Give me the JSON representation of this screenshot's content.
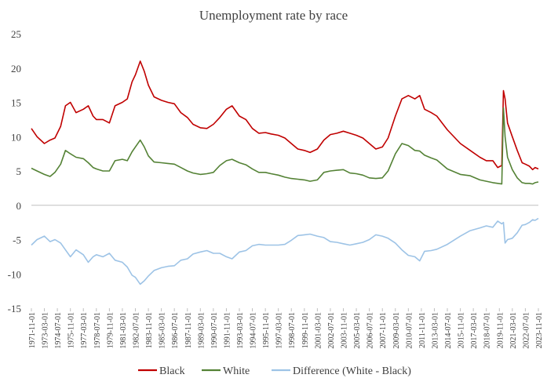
{
  "chart_data": {
    "type": "line",
    "title": "Unemployment rate by race",
    "xlabel": "",
    "ylabel": "",
    "ylim": [
      -15,
      25
    ],
    "yticks": [
      25,
      20,
      15,
      10,
      5,
      0,
      -5,
      -10,
      -15
    ],
    "xlim": [
      "1971-11-01",
      "2023-11-01"
    ],
    "xticks": [
      "1971-11-01",
      "1973-03-01",
      "1974-07-01",
      "1975-11-01",
      "1977-03-01",
      "1978-07-01",
      "1979-11-01",
      "1981-03-01",
      "1982-07-01",
      "1983-11-01",
      "1985-03-01",
      "1986-07-01",
      "1987-11-01",
      "1989-03-01",
      "1990-07-01",
      "1991-11-01",
      "1993-03-01",
      "1994-07-01",
      "1995-11-01",
      "1997-03-01",
      "1998-07-01",
      "1999-11-01",
      "2001-03-01",
      "2002-07-01",
      "2003-11-01",
      "2005-03-01",
      "2006-07-01",
      "2007-11-01",
      "2009-03-01",
      "2010-07-01",
      "2011-11-01",
      "2013-03-01",
      "2014-07-01",
      "2015-11-01",
      "2017-03-01",
      "2018-07-01",
      "2019-11-01",
      "2021-03-01",
      "2022-07-01",
      "2023-11-01"
    ],
    "grid": false,
    "legend_position": "bottom",
    "series": [
      {
        "name": "Black",
        "color": "#c00000",
        "points": [
          [
            "1971-11-01",
            11.2
          ],
          [
            "1972-06-01",
            10.0
          ],
          [
            "1973-03-01",
            9.0
          ],
          [
            "1973-10-01",
            9.5
          ],
          [
            "1974-04-01",
            9.8
          ],
          [
            "1974-11-01",
            11.5
          ],
          [
            "1975-05-01",
            14.5
          ],
          [
            "1975-11-01",
            15.0
          ],
          [
            "1976-06-01",
            13.5
          ],
          [
            "1977-03-01",
            14.0
          ],
          [
            "1977-09-01",
            14.5
          ],
          [
            "1978-03-01",
            13.0
          ],
          [
            "1978-07-01",
            12.5
          ],
          [
            "1979-03-01",
            12.5
          ],
          [
            "1979-11-01",
            12.0
          ],
          [
            "1980-06-01",
            14.5
          ],
          [
            "1981-03-01",
            15.0
          ],
          [
            "1981-09-01",
            15.5
          ],
          [
            "1982-03-01",
            18.0
          ],
          [
            "1982-07-01",
            19.0
          ],
          [
            "1983-01-01",
            21.0
          ],
          [
            "1983-06-01",
            19.5
          ],
          [
            "1983-11-01",
            17.5
          ],
          [
            "1984-06-01",
            15.8
          ],
          [
            "1985-03-01",
            15.3
          ],
          [
            "1985-11-01",
            15.0
          ],
          [
            "1986-07-01",
            14.8
          ],
          [
            "1987-03-01",
            13.5
          ],
          [
            "1987-11-01",
            12.8
          ],
          [
            "1988-06-01",
            11.8
          ],
          [
            "1989-03-01",
            11.3
          ],
          [
            "1989-11-01",
            11.2
          ],
          [
            "1990-07-01",
            11.8
          ],
          [
            "1991-03-01",
            12.8
          ],
          [
            "1991-11-01",
            14.0
          ],
          [
            "1992-06-01",
            14.5
          ],
          [
            "1993-03-01",
            13.0
          ],
          [
            "1993-11-01",
            12.5
          ],
          [
            "1994-07-01",
            11.2
          ],
          [
            "1995-03-01",
            10.5
          ],
          [
            "1995-11-01",
            10.6
          ],
          [
            "1996-06-01",
            10.4
          ],
          [
            "1997-03-01",
            10.2
          ],
          [
            "1997-11-01",
            9.8
          ],
          [
            "1998-07-01",
            9.0
          ],
          [
            "1999-03-01",
            8.2
          ],
          [
            "1999-11-01",
            8.0
          ],
          [
            "2000-06-01",
            7.7
          ],
          [
            "2001-03-01",
            8.2
          ],
          [
            "2001-11-01",
            9.5
          ],
          [
            "2002-07-01",
            10.3
          ],
          [
            "2003-03-01",
            10.5
          ],
          [
            "2003-11-01",
            10.8
          ],
          [
            "2004-07-01",
            10.5
          ],
          [
            "2005-03-01",
            10.2
          ],
          [
            "2005-11-01",
            9.8
          ],
          [
            "2006-07-01",
            9.0
          ],
          [
            "2007-03-01",
            8.2
          ],
          [
            "2007-11-01",
            8.5
          ],
          [
            "2008-06-01",
            9.8
          ],
          [
            "2009-03-01",
            13.0
          ],
          [
            "2009-11-01",
            15.5
          ],
          [
            "2010-07-01",
            16.0
          ],
          [
            "2011-03-01",
            15.5
          ],
          [
            "2011-09-01",
            16.0
          ],
          [
            "2012-03-01",
            14.0
          ],
          [
            "2012-11-01",
            13.5
          ],
          [
            "2013-06-01",
            13.0
          ],
          [
            "2014-07-01",
            11.0
          ],
          [
            "2015-11-01",
            9.0
          ],
          [
            "2016-11-01",
            8.0
          ],
          [
            "2017-11-01",
            7.0
          ],
          [
            "2018-07-01",
            6.5
          ],
          [
            "2019-03-01",
            6.5
          ],
          [
            "2019-09-01",
            5.5
          ],
          [
            "2020-02-01",
            5.8
          ],
          [
            "2020-04-01",
            16.7
          ],
          [
            "2020-06-01",
            15.5
          ],
          [
            "2020-09-01",
            12.0
          ],
          [
            "2021-03-01",
            10.0
          ],
          [
            "2021-09-01",
            8.0
          ],
          [
            "2022-03-01",
            6.2
          ],
          [
            "2022-07-01",
            6.0
          ],
          [
            "2022-12-01",
            5.7
          ],
          [
            "2023-04-01",
            5.2
          ],
          [
            "2023-07-01",
            5.5
          ],
          [
            "2023-11-01",
            5.3
          ]
        ]
      },
      {
        "name": "White",
        "color": "#548235",
        "points": [
          [
            "1971-11-01",
            5.4
          ],
          [
            "1972-06-01",
            5.0
          ],
          [
            "1973-03-01",
            4.5
          ],
          [
            "1973-10-01",
            4.2
          ],
          [
            "1974-04-01",
            4.8
          ],
          [
            "1974-11-01",
            6.0
          ],
          [
            "1975-05-01",
            8.0
          ],
          [
            "1975-11-01",
            7.5
          ],
          [
            "1976-06-01",
            7.0
          ],
          [
            "1977-03-01",
            6.8
          ],
          [
            "1977-09-01",
            6.2
          ],
          [
            "1978-03-01",
            5.5
          ],
          [
            "1978-07-01",
            5.3
          ],
          [
            "1979-03-01",
            5.0
          ],
          [
            "1979-11-01",
            5.0
          ],
          [
            "1980-06-01",
            6.5
          ],
          [
            "1981-03-01",
            6.7
          ],
          [
            "1981-09-01",
            6.5
          ],
          [
            "1982-03-01",
            7.8
          ],
          [
            "1982-07-01",
            8.5
          ],
          [
            "1983-01-01",
            9.5
          ],
          [
            "1983-06-01",
            8.5
          ],
          [
            "1983-11-01",
            7.2
          ],
          [
            "1984-06-01",
            6.3
          ],
          [
            "1985-03-01",
            6.2
          ],
          [
            "1985-11-01",
            6.1
          ],
          [
            "1986-07-01",
            6.0
          ],
          [
            "1987-03-01",
            5.5
          ],
          [
            "1987-11-01",
            5.0
          ],
          [
            "1988-06-01",
            4.7
          ],
          [
            "1989-03-01",
            4.5
          ],
          [
            "1989-11-01",
            4.6
          ],
          [
            "1990-07-01",
            4.8
          ],
          [
            "1991-03-01",
            5.8
          ],
          [
            "1991-11-01",
            6.5
          ],
          [
            "1992-06-01",
            6.7
          ],
          [
            "1993-03-01",
            6.2
          ],
          [
            "1993-11-01",
            5.9
          ],
          [
            "1994-07-01",
            5.3
          ],
          [
            "1995-03-01",
            4.8
          ],
          [
            "1995-11-01",
            4.8
          ],
          [
            "1996-06-01",
            4.6
          ],
          [
            "1997-03-01",
            4.4
          ],
          [
            "1997-11-01",
            4.1
          ],
          [
            "1998-07-01",
            3.9
          ],
          [
            "1999-03-01",
            3.8
          ],
          [
            "1999-11-01",
            3.7
          ],
          [
            "2000-06-01",
            3.5
          ],
          [
            "2001-03-01",
            3.7
          ],
          [
            "2001-11-01",
            4.8
          ],
          [
            "2002-07-01",
            5.0
          ],
          [
            "2003-03-01",
            5.1
          ],
          [
            "2003-11-01",
            5.2
          ],
          [
            "2004-07-01",
            4.7
          ],
          [
            "2005-03-01",
            4.6
          ],
          [
            "2005-11-01",
            4.4
          ],
          [
            "2006-07-01",
            4.0
          ],
          [
            "2007-03-01",
            3.9
          ],
          [
            "2007-11-01",
            4.0
          ],
          [
            "2008-06-01",
            5.0
          ],
          [
            "2009-03-01",
            7.5
          ],
          [
            "2009-11-01",
            9.0
          ],
          [
            "2010-07-01",
            8.7
          ],
          [
            "2011-03-01",
            8.0
          ],
          [
            "2011-09-01",
            7.9
          ],
          [
            "2012-03-01",
            7.3
          ],
          [
            "2012-11-01",
            6.9
          ],
          [
            "2013-06-01",
            6.6
          ],
          [
            "2014-07-01",
            5.3
          ],
          [
            "2015-11-01",
            4.5
          ],
          [
            "2016-11-01",
            4.3
          ],
          [
            "2017-11-01",
            3.7
          ],
          [
            "2018-07-01",
            3.5
          ],
          [
            "2019-03-01",
            3.3
          ],
          [
            "2019-09-01",
            3.2
          ],
          [
            "2020-02-01",
            3.1
          ],
          [
            "2020-04-01",
            14.2
          ],
          [
            "2020-06-01",
            10.0
          ],
          [
            "2020-09-01",
            7.0
          ],
          [
            "2021-03-01",
            5.2
          ],
          [
            "2021-09-01",
            4.0
          ],
          [
            "2022-03-01",
            3.3
          ],
          [
            "2022-07-01",
            3.2
          ],
          [
            "2022-12-01",
            3.2
          ],
          [
            "2023-04-01",
            3.1
          ],
          [
            "2023-07-01",
            3.3
          ],
          [
            "2023-11-01",
            3.4
          ]
        ]
      },
      {
        "name": "Difference (White - Black)",
        "color": "#9dc3e6",
        "points": [
          [
            "1971-11-01",
            -5.8
          ],
          [
            "1972-06-01",
            -5.0
          ],
          [
            "1973-03-01",
            -4.5
          ],
          [
            "1973-10-01",
            -5.3
          ],
          [
            "1974-04-01",
            -5.0
          ],
          [
            "1974-11-01",
            -5.5
          ],
          [
            "1975-05-01",
            -6.5
          ],
          [
            "1975-11-01",
            -7.5
          ],
          [
            "1976-06-01",
            -6.5
          ],
          [
            "1977-03-01",
            -7.2
          ],
          [
            "1977-09-01",
            -8.3
          ],
          [
            "1978-03-01",
            -7.5
          ],
          [
            "1978-07-01",
            -7.2
          ],
          [
            "1979-03-01",
            -7.5
          ],
          [
            "1979-11-01",
            -7.0
          ],
          [
            "1980-06-01",
            -8.0
          ],
          [
            "1981-03-01",
            -8.3
          ],
          [
            "1981-09-01",
            -9.0
          ],
          [
            "1982-03-01",
            -10.2
          ],
          [
            "1982-07-01",
            -10.5
          ],
          [
            "1983-01-01",
            -11.5
          ],
          [
            "1983-06-01",
            -11.0
          ],
          [
            "1983-11-01",
            -10.3
          ],
          [
            "1984-06-01",
            -9.5
          ],
          [
            "1985-03-01",
            -9.1
          ],
          [
            "1985-11-01",
            -8.9
          ],
          [
            "1986-07-01",
            -8.8
          ],
          [
            "1987-03-01",
            -8.0
          ],
          [
            "1987-11-01",
            -7.8
          ],
          [
            "1988-06-01",
            -7.1
          ],
          [
            "1989-03-01",
            -6.8
          ],
          [
            "1989-11-01",
            -6.6
          ],
          [
            "1990-07-01",
            -7.0
          ],
          [
            "1991-03-01",
            -7.0
          ],
          [
            "1991-11-01",
            -7.5
          ],
          [
            "1992-06-01",
            -7.8
          ],
          [
            "1993-03-01",
            -6.8
          ],
          [
            "1993-11-01",
            -6.6
          ],
          [
            "1994-07-01",
            -5.9
          ],
          [
            "1995-03-01",
            -5.7
          ],
          [
            "1995-11-01",
            -5.8
          ],
          [
            "1996-06-01",
            -5.8
          ],
          [
            "1997-03-01",
            -5.8
          ],
          [
            "1997-11-01",
            -5.7
          ],
          [
            "1998-07-01",
            -5.1
          ],
          [
            "1999-03-01",
            -4.4
          ],
          [
            "1999-11-01",
            -4.3
          ],
          [
            "2000-06-01",
            -4.2
          ],
          [
            "2001-03-01",
            -4.5
          ],
          [
            "2001-11-01",
            -4.7
          ],
          [
            "2002-07-01",
            -5.3
          ],
          [
            "2003-03-01",
            -5.4
          ],
          [
            "2003-11-01",
            -5.6
          ],
          [
            "2004-07-01",
            -5.8
          ],
          [
            "2005-03-01",
            -5.6
          ],
          [
            "2005-11-01",
            -5.4
          ],
          [
            "2006-07-01",
            -5.0
          ],
          [
            "2007-03-01",
            -4.3
          ],
          [
            "2007-11-01",
            -4.5
          ],
          [
            "2008-06-01",
            -4.8
          ],
          [
            "2009-03-01",
            -5.5
          ],
          [
            "2009-11-01",
            -6.5
          ],
          [
            "2010-07-01",
            -7.3
          ],
          [
            "2011-03-01",
            -7.5
          ],
          [
            "2011-09-01",
            -8.1
          ],
          [
            "2012-03-01",
            -6.7
          ],
          [
            "2012-11-01",
            -6.6
          ],
          [
            "2013-06-01",
            -6.4
          ],
          [
            "2014-07-01",
            -5.7
          ],
          [
            "2015-11-01",
            -4.5
          ],
          [
            "2016-11-01",
            -3.7
          ],
          [
            "2017-11-01",
            -3.3
          ],
          [
            "2018-07-01",
            -3.0
          ],
          [
            "2019-03-01",
            -3.2
          ],
          [
            "2019-09-01",
            -2.3
          ],
          [
            "2020-02-01",
            -2.7
          ],
          [
            "2020-04-01",
            -2.5
          ],
          [
            "2020-06-01",
            -5.5
          ],
          [
            "2020-09-01",
            -5.0
          ],
          [
            "2021-03-01",
            -4.8
          ],
          [
            "2021-09-01",
            -4.0
          ],
          [
            "2022-03-01",
            -2.9
          ],
          [
            "2022-07-01",
            -2.8
          ],
          [
            "2022-12-01",
            -2.5
          ],
          [
            "2023-04-01",
            -2.1
          ],
          [
            "2023-07-01",
            -2.2
          ],
          [
            "2023-11-01",
            -1.9
          ]
        ]
      }
    ]
  }
}
